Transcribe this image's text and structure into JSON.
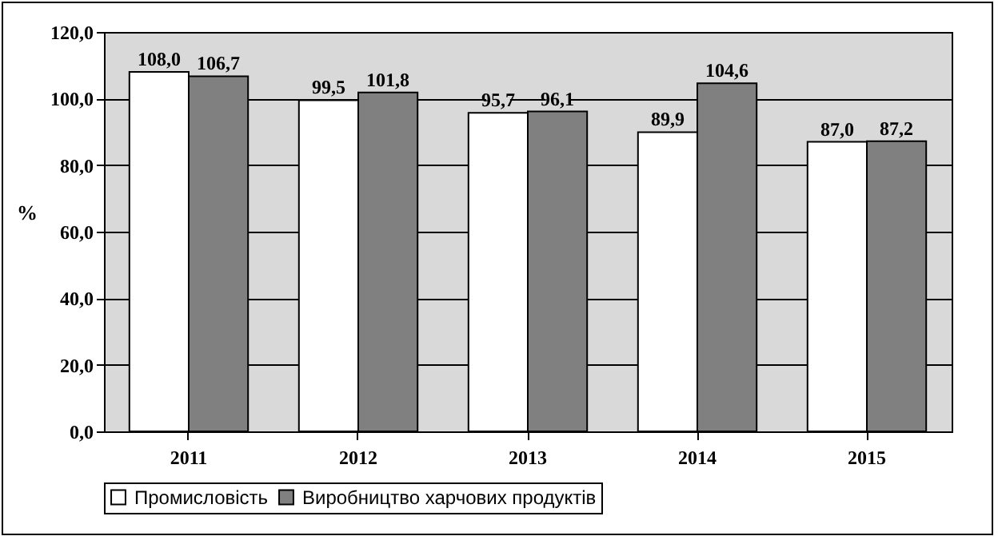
{
  "chart_data": {
    "type": "bar",
    "ylabel": "%",
    "categories": [
      "2011",
      "2012",
      "2013",
      "2014",
      "2015"
    ],
    "series": [
      {
        "name": "Промисловість",
        "color": "#ffffff",
        "values": [
          108.0,
          99.5,
          95.7,
          89.9,
          87.0
        ],
        "value_labels": [
          "108,0",
          "99,5",
          "95,7",
          "89,9",
          "87,0"
        ]
      },
      {
        "name": "Виробництво харчових продуктів",
        "color": "#808080",
        "values": [
          106.7,
          101.8,
          96.1,
          104.6,
          87.2
        ],
        "value_labels": [
          "106,7",
          "101,8",
          "96,1",
          "104,6",
          "87,2"
        ]
      }
    ],
    "ylim": [
      0,
      120
    ],
    "yticks": [
      {
        "value": 0,
        "label": "0,0"
      },
      {
        "value": 20,
        "label": "20,0"
      },
      {
        "value": 40,
        "label": "40,0"
      },
      {
        "value": 60,
        "label": "60,0"
      },
      {
        "value": 80,
        "label": "80,0"
      },
      {
        "value": 100,
        "label": "100,0"
      },
      {
        "value": 120,
        "label": "120,0"
      }
    ],
    "grid": "y",
    "legend": "bottom"
  }
}
